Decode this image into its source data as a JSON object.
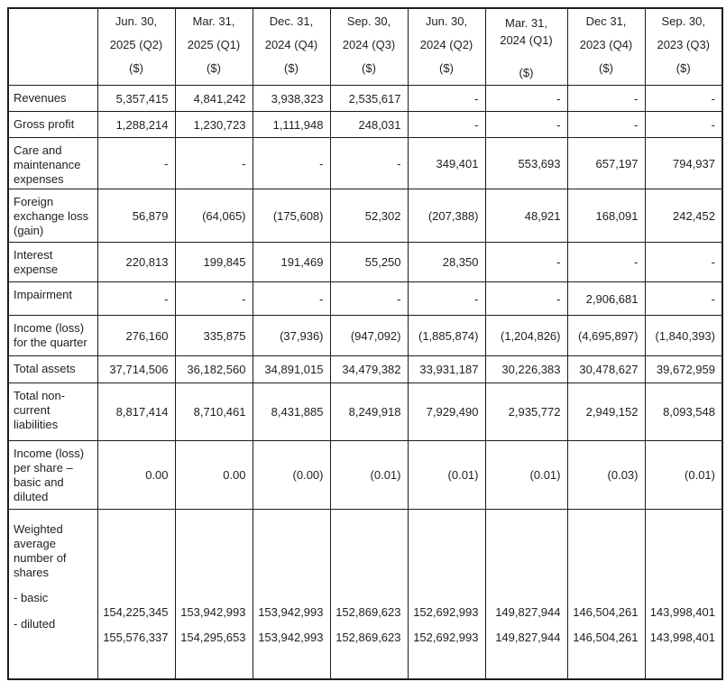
{
  "table": {
    "columns": [
      {
        "lines": [
          "Jun. 30,",
          "2025 (Q2)",
          "($)"
        ],
        "tight": false
      },
      {
        "lines": [
          "Mar. 31,",
          "2025 (Q1)",
          "($)"
        ],
        "tight": false
      },
      {
        "lines": [
          "Dec. 31,",
          "2024 (Q4)",
          "($)"
        ],
        "tight": false
      },
      {
        "lines": [
          "Sep. 30,",
          "2024 (Q3)",
          "($)"
        ],
        "tight": false
      },
      {
        "lines": [
          "Jun. 30,",
          "2024 (Q2)",
          "($)"
        ],
        "tight": false
      },
      {
        "lines": [
          "Mar. 31,",
          "2024 (Q1)",
          "($)"
        ],
        "tight": true
      },
      {
        "lines": [
          "Dec 31,",
          "2023 (Q4)",
          "($)"
        ],
        "tight": false
      },
      {
        "lines": [
          "Sep. 30,",
          "2023 (Q3)",
          "($)"
        ],
        "tight": false
      }
    ],
    "rows": [
      {
        "label": "Revenues",
        "values": [
          "5,357,415",
          "4,841,242",
          "3,938,323",
          "2,535,617",
          "-",
          "-",
          "-",
          "-"
        ]
      },
      {
        "label": "Gross profit",
        "values": [
          "1,288,214",
          "1,230,723",
          "1,111,948",
          "248,031",
          "-",
          "-",
          "-",
          "-"
        ]
      },
      {
        "label": "Care and maintenance expenses",
        "values": [
          "-",
          "-",
          "-",
          "-",
          "349,401",
          "553,693",
          "657,197",
          "794,937"
        ]
      },
      {
        "label": "Foreign exchange loss (gain)",
        "values": [
          "56,879",
          "(64,065)",
          "(175,608)",
          "52,302",
          "(207,388)",
          "48,921",
          "168,091",
          "242,452"
        ]
      },
      {
        "label": "Interest expense",
        "values": [
          "220,813",
          "199,845",
          "191,469",
          "55,250",
          "28,350",
          "-",
          "-",
          "-"
        ]
      },
      {
        "label": "Impairment",
        "values": [
          "-",
          "-",
          "-",
          "-",
          "-",
          "-",
          "2,906,681",
          "-"
        ]
      },
      {
        "label": "Income (loss) for the quarter",
        "values": [
          "276,160",
          "335,875",
          "(37,936)",
          "(947,092)",
          "(1,885,874)",
          "(1,204,826)",
          "(4,695,897)",
          "(1,840,393)"
        ]
      },
      {
        "label": "Total assets",
        "values": [
          "37,714,506",
          "36,182,560",
          "34,891,015",
          "34,479,382",
          "33,931,187",
          "30,226,383",
          "30,478,627",
          "39,672,959"
        ]
      },
      {
        "label": "Total non-current liabilities",
        "values": [
          "8,817,414",
          "8,710,461",
          "8,431,885",
          "8,249,918",
          "7,929,490",
          "2,935,772",
          "2,949,152",
          "8,093,548"
        ]
      },
      {
        "label": "Income (loss) per share – basic and diluted",
        "values": [
          "0.00",
          "0.00",
          "(0.00)",
          "(0.01)",
          "(0.01)",
          "(0.01)",
          "(0.03)",
          "(0.01)"
        ]
      }
    ],
    "shares": {
      "title": "Weighted average number of shares",
      "sub_labels": [
        "- basic",
        "- diluted"
      ],
      "basic": [
        "154,225,345",
        "153,942,993",
        "153,942,993",
        "152,869,623",
        "152,692,993",
        "149,827,944",
        "146,504,261",
        "143,998,401"
      ],
      "diluted": [
        "155,576,337",
        "154,295,653",
        "153,942,993",
        "152,869,623",
        "152,692,993",
        "149,827,944",
        "146,504,261",
        "143,998,401"
      ]
    }
  }
}
